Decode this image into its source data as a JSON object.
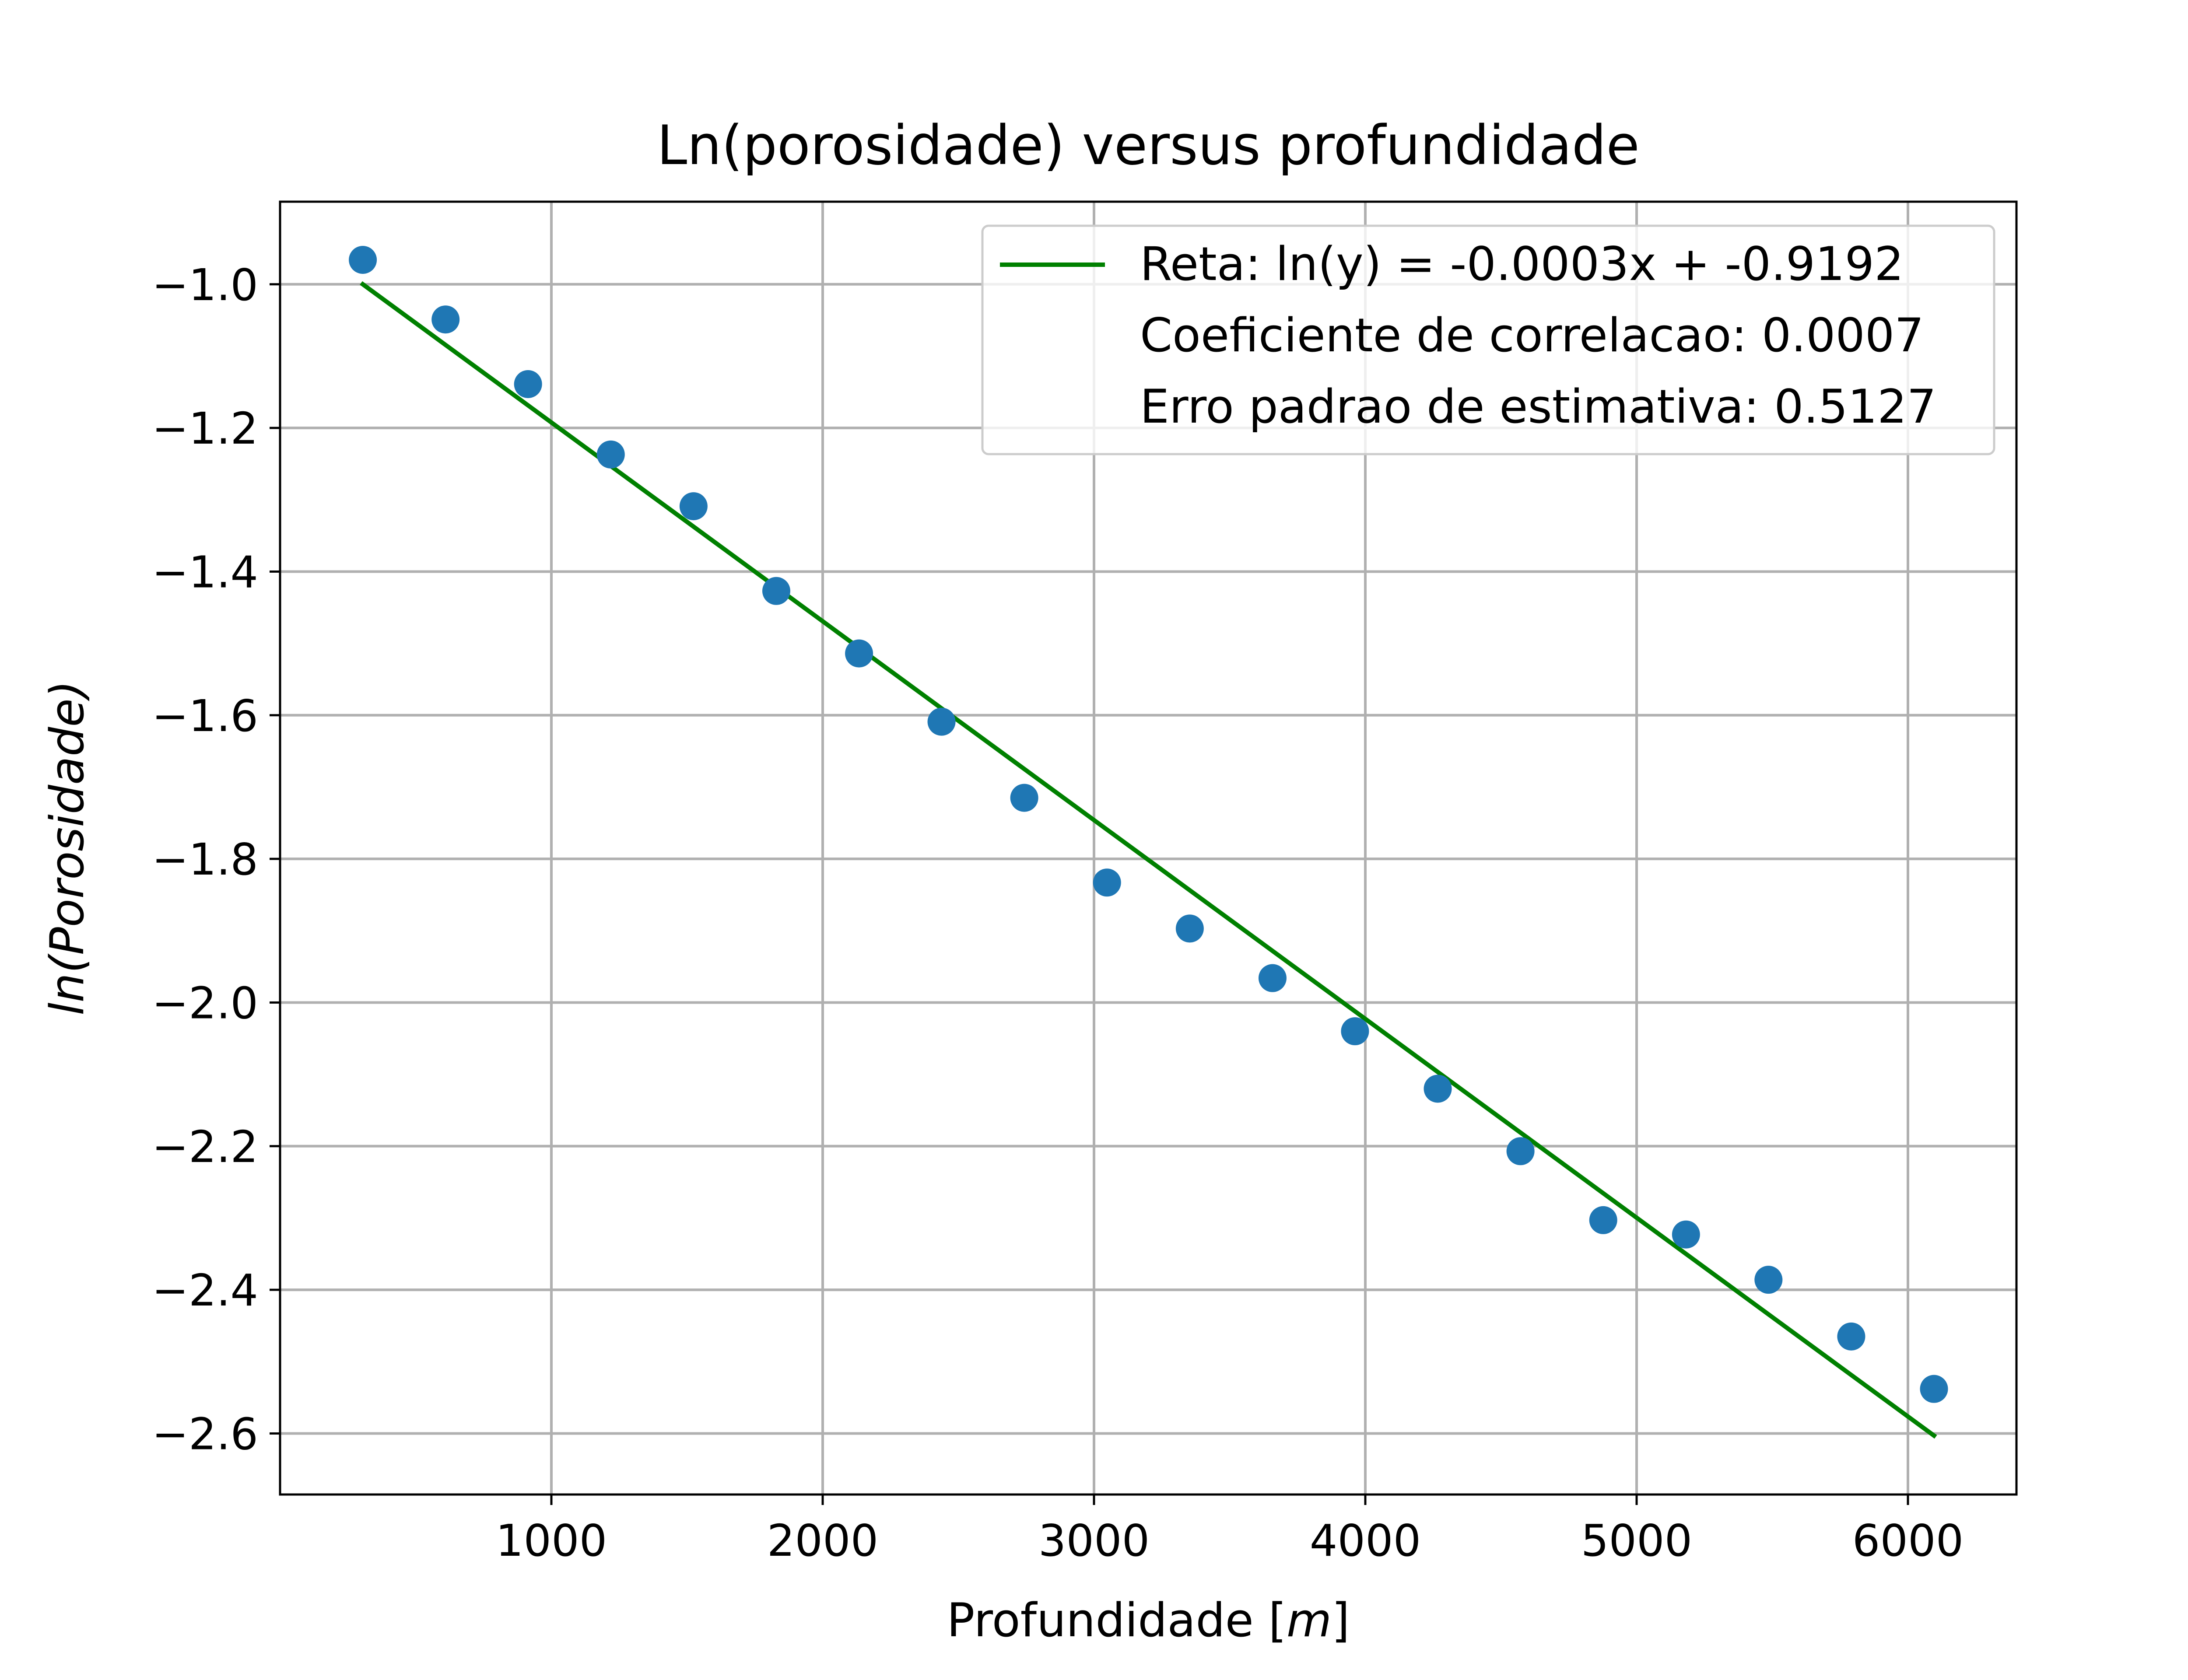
{
  "chart_data": {
    "type": "scatter",
    "title": "Ln(porosidade) versus profundidade",
    "xlabel": "Profundidade [",
    "xlabel_unit": "m",
    "xlabel_close": "]",
    "ylabel": "ln(Porosidade)",
    "xlim": [
      0,
      6400
    ],
    "ylim": [
      -2.685,
      -0.885
    ],
    "xticks": [
      1000,
      2000,
      3000,
      4000,
      5000,
      6000
    ],
    "xtick_labels": [
      "1000",
      "2000",
      "3000",
      "4000",
      "5000",
      "6000"
    ],
    "yticks": [
      -1.0,
      -1.2,
      -1.4,
      -1.6,
      -1.8,
      -2.0,
      -2.2,
      -2.4,
      -2.6
    ],
    "ytick_labels": [
      "−1.0",
      "−1.2",
      "−1.4",
      "−1.6",
      "−1.8",
      "−2.0",
      "−2.2",
      "−2.4",
      "−2.6"
    ],
    "grid": true,
    "legend_position": "top-right",
    "series": [
      {
        "kind": "scatter",
        "color": "#1f77b4",
        "x": [
          305,
          610,
          914,
          1219,
          1524,
          1829,
          2134,
          2438,
          2743,
          3048,
          3353,
          3658,
          3962,
          4267,
          4572,
          4877,
          5182,
          5486,
          5791,
          6096
        ],
        "y": [
          -0.966,
          -1.049,
          -1.139,
          -1.237,
          -1.309,
          -1.427,
          -1.514,
          -1.609,
          -1.715,
          -1.833,
          -1.897,
          -1.966,
          -2.04,
          -2.12,
          -2.207,
          -2.303,
          -2.323,
          -2.386,
          -2.465,
          -2.538
        ]
      },
      {
        "kind": "line",
        "name": "Reta: ln(y) = -0.0003x + -0.9192",
        "color": "#008000",
        "x": [
          305,
          6096
        ],
        "y": [
          -1.0,
          -2.603
        ]
      }
    ],
    "legend": {
      "entries": [
        "Reta: ln(y) = -0.0003x + -0.9192",
        "Coeficiente de correlacao: 0.0007",
        "Erro padrao de estimativa: 0.5127"
      ]
    }
  }
}
